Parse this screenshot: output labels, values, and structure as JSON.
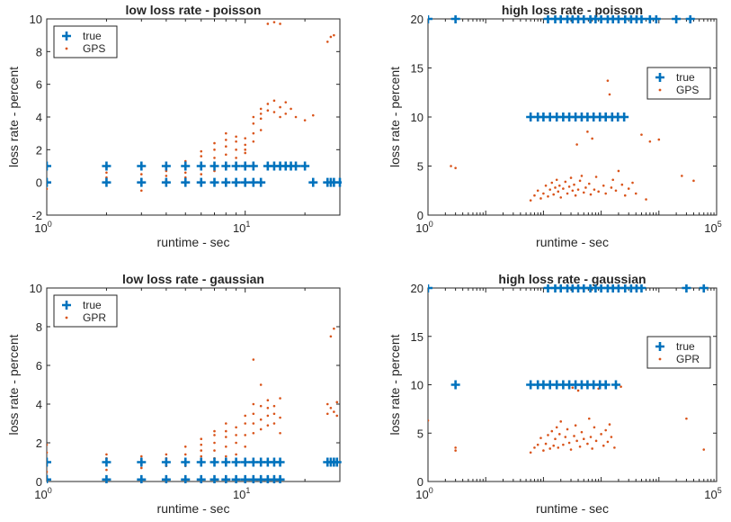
{
  "colors": {
    "true": "#0072BD",
    "pred": "#D95319",
    "axis": "#262626"
  },
  "chart_data": [
    {
      "type": "scatter",
      "title": "low loss rate - poisson",
      "xlabel": "runtime - sec",
      "ylabel": "loss rate - percent",
      "xscale": "log",
      "xlim": [
        1,
        30
      ],
      "ylim": [
        -2,
        10
      ],
      "yticks": [
        -2,
        0,
        2,
        4,
        6,
        8,
        10
      ],
      "xticks": [
        1,
        10
      ],
      "xtick_labels": [
        [
          "10",
          "0"
        ],
        [
          "10",
          "1"
        ]
      ],
      "legend": {
        "position": "top-left",
        "entries": [
          "true",
          "GPS"
        ]
      },
      "series": [
        {
          "name": "true",
          "marker": "plus",
          "x": [
            1,
            1,
            2,
            2,
            3,
            3,
            4,
            4,
            5,
            5,
            6,
            6,
            7,
            7,
            8,
            8,
            9,
            9,
            10,
            10,
            11,
            11,
            12,
            13,
            14,
            15,
            16,
            17,
            18,
            20,
            22,
            26,
            27,
            28,
            30
          ],
          "y": [
            1,
            0,
            1,
            0,
            1,
            0,
            1,
            0,
            1,
            0,
            1,
            0,
            1,
            0,
            1,
            0,
            1,
            0,
            1,
            0,
            1,
            0,
            0,
            1,
            1,
            1,
            1,
            1,
            1,
            1,
            0,
            0,
            0,
            0,
            0
          ]
        },
        {
          "name": "GPS",
          "marker": "dot",
          "x": [
            1,
            1,
            1,
            2,
            2,
            2,
            3,
            3,
            3,
            3,
            4,
            4,
            4,
            4,
            5,
            5,
            5,
            5,
            6,
            6,
            6,
            6,
            6,
            7,
            7,
            7,
            7,
            7,
            8,
            8,
            8,
            8,
            8,
            8,
            9,
            9,
            9,
            9,
            9,
            10,
            10,
            10,
            10,
            10,
            11,
            11,
            11,
            11,
            12,
            12,
            12,
            12,
            13,
            13,
            13,
            14,
            14,
            14,
            15,
            15,
            15,
            16,
            16,
            17,
            18,
            20,
            22,
            26,
            27,
            28
          ],
          "y": [
            0.1,
            -0.2,
            -0.4,
            0.3,
            0.6,
            0.9,
            0.2,
            0.5,
            -0.5,
            0.8,
            0.4,
            0.7,
            1.0,
            0.1,
            0.6,
            1.0,
            1.3,
            0.3,
            0.8,
            1.2,
            1.6,
            1.9,
            0.5,
            1.0,
            1.5,
            2.0,
            2.4,
            0.7,
            1.2,
            1.7,
            2.2,
            2.6,
            3.0,
            0.9,
            1.5,
            2.0,
            2.5,
            2.8,
            1.2,
            1.8,
            2.3,
            2.7,
            2.0,
            1.0,
            2.5,
            3.0,
            3.6,
            4.0,
            3.2,
            4.2,
            4.5,
            3.9,
            4.4,
            4.8,
            9.7,
            5.0,
            4.3,
            9.8,
            4.6,
            9.7,
            4.0,
            4.9,
            4.2,
            4.5,
            4.0,
            3.8,
            4.1,
            8.6,
            8.9,
            9.0
          ]
        }
      ]
    },
    {
      "type": "scatter",
      "title": "high loss rate - poisson",
      "xlabel": "runtime - sec",
      "ylabel": "loss rate - percent",
      "xscale": "log",
      "xlim": [
        1,
        100000
      ],
      "ylim": [
        0,
        20
      ],
      "yticks": [
        0,
        5,
        10,
        15,
        20
      ],
      "xticks": [
        1,
        100000
      ],
      "xtick_labels": [
        [
          "10",
          "0"
        ],
        [
          "10",
          "5"
        ]
      ],
      "legend": {
        "position": "top-right",
        "entries": [
          "true",
          "GPS"
        ]
      },
      "series": [
        {
          "name": "true",
          "marker": "plus",
          "x": [
            1,
            3,
            120,
            160,
            200,
            260,
            320,
            400,
            500,
            650,
            800,
            1000,
            1300,
            1600,
            2000,
            2600,
            3300,
            4100,
            5000,
            7000,
            9000,
            20000,
            35000,
            60,
            80,
            100,
            130,
            170,
            220,
            280,
            360,
            460,
            580,
            740,
            950,
            1200,
            1550,
            1950,
            2500
          ],
          "y": [
            20,
            20,
            20,
            20,
            20,
            20,
            20,
            20,
            20,
            20,
            20,
            20,
            20,
            20,
            20,
            20,
            20,
            20,
            20,
            20,
            20,
            20,
            20,
            10,
            10,
            10,
            10,
            10,
            10,
            10,
            10,
            10,
            10,
            10,
            10,
            10,
            10,
            10,
            10
          ]
        },
        {
          "name": "GPS",
          "marker": "dot",
          "x": [
            2.5,
            3,
            60,
            70,
            80,
            90,
            100,
            110,
            120,
            130,
            140,
            150,
            160,
            170,
            180,
            190,
            200,
            220,
            240,
            260,
            280,
            300,
            320,
            340,
            360,
            380,
            400,
            430,
            460,
            500,
            540,
            580,
            620,
            660,
            700,
            760,
            820,
            900,
            1000,
            1100,
            1200,
            1300,
            1400,
            1500,
            1600,
            1800,
            2000,
            2300,
            2600,
            3000,
            3500,
            4000,
            5000,
            6000,
            7000,
            10000,
            25000,
            40000
          ],
          "y": [
            5,
            4.8,
            1.5,
            2.0,
            2.5,
            1.7,
            2.2,
            3.0,
            1.9,
            2.6,
            3.3,
            2.1,
            2.8,
            3.6,
            2.4,
            3.0,
            1.8,
            2.7,
            3.4,
            2.2,
            2.9,
            3.8,
            2.5,
            3.1,
            2.0,
            7.2,
            2.6,
            3.5,
            4.0,
            2.3,
            2.8,
            8.5,
            3.2,
            2.1,
            7.8,
            2.6,
            3.9,
            2.4,
            10.0,
            3.0,
            2.2,
            13.7,
            12.3,
            2.8,
            3.6,
            2.5,
            4.5,
            3.1,
            2.0,
            2.7,
            3.3,
            2.2,
            8.2,
            1.6,
            7.5,
            7.7,
            4.0,
            3.5
          ]
        }
      ]
    },
    {
      "type": "scatter",
      "title": "low loss rate - gaussian",
      "xlabel": "runtime - sec",
      "ylabel": "loss rate - percent",
      "xscale": "log",
      "xlim": [
        1,
        30
      ],
      "ylim": [
        0,
        10
      ],
      "yticks": [
        0,
        2,
        4,
        6,
        8,
        10
      ],
      "xticks": [
        1,
        10
      ],
      "xtick_labels": [
        [
          "10",
          "0"
        ],
        [
          "10",
          "1"
        ]
      ],
      "legend": {
        "position": "top-left",
        "entries": [
          "true",
          "GPR"
        ]
      },
      "series": [
        {
          "name": "true",
          "marker": "plus",
          "x": [
            1,
            1,
            2,
            2,
            3,
            3,
            4,
            4,
            5,
            5,
            6,
            6,
            7,
            7,
            8,
            8,
            9,
            9,
            10,
            10,
            11,
            11,
            12,
            12,
            13,
            13,
            14,
            14,
            15,
            15,
            26,
            27,
            28,
            29
          ],
          "y": [
            1,
            0.1,
            1,
            0.1,
            1,
            0.1,
            1,
            0.1,
            1,
            0.1,
            1,
            0.1,
            1,
            0.1,
            1,
            0.1,
            1,
            0.1,
            1,
            0.1,
            1,
            0.1,
            1,
            0.1,
            1,
            0.1,
            1,
            0.1,
            1,
            0.1,
            1,
            1,
            1,
            1
          ]
        },
        {
          "name": "GPR",
          "marker": "dot",
          "x": [
            1,
            1,
            1,
            1,
            2,
            2,
            2,
            2,
            3,
            3,
            3,
            3,
            4,
            4,
            4,
            4,
            5,
            5,
            5,
            5,
            6,
            6,
            6,
            6,
            6,
            7,
            7,
            7,
            7,
            7,
            8,
            8,
            8,
            8,
            8,
            8,
            9,
            9,
            9,
            9,
            10,
            10,
            10,
            10,
            11,
            11,
            11,
            11,
            11,
            12,
            12,
            12,
            12,
            13,
            13,
            13,
            13,
            14,
            14,
            14,
            15,
            15,
            15,
            26,
            26,
            27,
            27,
            28,
            28,
            29,
            29
          ],
          "y": [
            0.5,
            1.0,
            1.5,
            1.9,
            0.6,
            1.0,
            1.2,
            1.4,
            0.7,
            1.1,
            1.3,
            0.9,
            0.8,
            1.2,
            1.4,
            1.0,
            1.0,
            1.4,
            1.8,
            0.8,
            1.0,
            1.3,
            1.6,
            1.9,
            2.2,
            1.2,
            1.6,
            2.0,
            2.4,
            2.6,
            1.3,
            1.8,
            2.3,
            2.6,
            3.0,
            1.0,
            1.4,
            2.0,
            2.4,
            2.8,
            1.8,
            2.4,
            3.0,
            3.4,
            2.5,
            3.0,
            3.5,
            4.0,
            6.3,
            2.7,
            3.2,
            3.9,
            5.0,
            2.9,
            3.4,
            3.8,
            4.2,
            3.0,
            3.5,
            3.9,
            2.5,
            3.3,
            4.3,
            3.5,
            4.0,
            7.5,
            3.8,
            7.9,
            3.6,
            4.1,
            3.4
          ]
        }
      ]
    },
    {
      "type": "scatter",
      "title": "high loss rate - gaussian",
      "xlabel": "runtime - sec",
      "ylabel": "loss rate - percent",
      "xscale": "log",
      "xlim": [
        1,
        100000
      ],
      "ylim": [
        0,
        20
      ],
      "yticks": [
        0,
        5,
        10,
        15,
        20
      ],
      "xticks": [
        1,
        100000
      ],
      "xtick_labels": [
        [
          "10",
          "0"
        ],
        [
          "10",
          "5"
        ]
      ],
      "legend": {
        "position": "top-right",
        "entries": [
          "true",
          "GPR"
        ]
      },
      "series": [
        {
          "name": "true",
          "marker": "plus",
          "x": [
            1,
            120,
            160,
            200,
            260,
            320,
            400,
            500,
            650,
            800,
            1000,
            1300,
            1600,
            2000,
            2600,
            3300,
            4100,
            5000,
            30000,
            60000,
            3,
            60,
            80,
            100,
            130,
            170,
            220,
            280,
            360,
            460,
            580,
            740,
            950,
            1200,
            1800
          ],
          "y": [
            20,
            20,
            20,
            20,
            20,
            20,
            20,
            20,
            20,
            20,
            20,
            20,
            20,
            20,
            20,
            20,
            20,
            20,
            20,
            20,
            10,
            10,
            10,
            10,
            10,
            10,
            10,
            10,
            10,
            10,
            10,
            10,
            10,
            10,
            10
          ]
        },
        {
          "name": "GPR",
          "marker": "dot",
          "x": [
            1,
            3,
            3,
            60,
            70,
            80,
            90,
            100,
            110,
            120,
            130,
            140,
            150,
            160,
            170,
            180,
            190,
            200,
            220,
            240,
            260,
            280,
            300,
            320,
            340,
            360,
            380,
            400,
            430,
            460,
            500,
            540,
            580,
            620,
            660,
            700,
            760,
            820,
            900,
            1000,
            1100,
            1200,
            1300,
            1400,
            1500,
            1700,
            1900,
            2200,
            30000,
            60000
          ],
          "y": [
            6.3,
            3.5,
            3.2,
            3.0,
            3.5,
            3.8,
            4.5,
            3.2,
            3.9,
            4.8,
            3.4,
            5.2,
            3.7,
            4.4,
            5.6,
            3.5,
            4.9,
            6.2,
            3.8,
            4.6,
            5.4,
            4.0,
            3.3,
            9.7,
            4.7,
            5.8,
            4.2,
            9.4,
            3.6,
            5.1,
            4.4,
            10.0,
            3.9,
            6.5,
            4.6,
            3.4,
            5.6,
            4.2,
            9.6,
            4.9,
            3.7,
            5.3,
            4.1,
            5.9,
            4.6,
            3.5,
            10.0,
            9.8,
            6.5,
            3.3
          ]
        }
      ]
    }
  ]
}
